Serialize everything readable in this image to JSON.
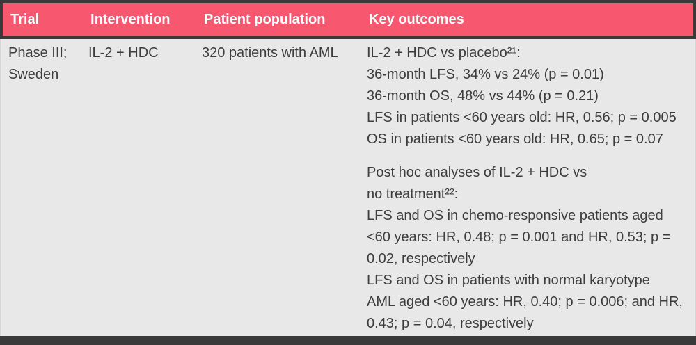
{
  "theme": {
    "header_bg": "#f8586f",
    "header_text": "#ffffff",
    "body_bg": "#e8e8e8",
    "body_text": "#3d3d3d",
    "bar_color": "#3a3a3a"
  },
  "table": {
    "columns": [
      "Trial",
      "Intervention",
      "Patient population",
      "Key outcomes"
    ],
    "rows": [
      {
        "trial": "Phase III;\nSweden",
        "intervention": "IL-2 + HDC",
        "patient_population": "320 patients with AML",
        "key_outcomes": {
          "groups": [
            {
              "lines": [
                "IL-2 + HDC vs placebo²¹:",
                "36-month LFS, 34% vs 24% (p = 0.01)",
                "36-month OS, 48% vs 44% (p = 0.21)",
                "LFS in patients <60 years old: HR, 0.56; p = 0.005",
                "OS in patients <60 years old: HR, 0.65; p = 0.07"
              ]
            },
            {
              "lines": [
                "Post hoc analyses of IL-2 + HDC vs",
                "no treatment²²:",
                "LFS and OS in chemo-responsive patients aged",
                "<60 years: HR, 0.48; p = 0.001 and HR, 0.53; p =",
                "0.02, respectively",
                "LFS and OS in patients with normal karyotype",
                "AML aged <60 years: HR, 0.40; p = 0.006; and HR,",
                "0.43; p = 0.04, respectively"
              ]
            }
          ]
        }
      }
    ]
  }
}
